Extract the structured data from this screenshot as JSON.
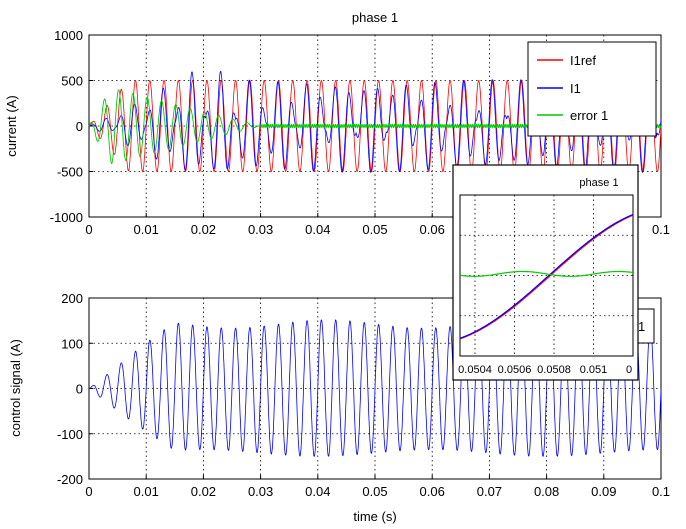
{
  "chart_data": [
    {
      "type": "line",
      "title": "phase 1",
      "xlabel": "",
      "ylabel": "current (A)",
      "xlim": [
        0,
        0.1
      ],
      "ylim": [
        -1000,
        1000
      ],
      "xticks": [
        "0",
        "0.01",
        "0.02",
        "0.03",
        "0.04",
        "0.05",
        "0.06",
        "0.07",
        "0.08",
        "0.09",
        "0.1"
      ],
      "yticks": [
        "-1000",
        "-500",
        "0",
        "500",
        "1000"
      ],
      "grid": true,
      "legend_position": "top-right",
      "series": [
        {
          "name": "I1ref",
          "color": "#ff0000",
          "amplitude": 500,
          "frequency_hz": 400,
          "ramp_end_s": 0.007
        },
        {
          "name": "I1",
          "color": "#0000ff",
          "amplitude": 500,
          "frequency_hz": 400,
          "oscillation_overshoot": 600
        },
        {
          "name": "error 1",
          "color": "#00cc00",
          "peak": 480,
          "decay_to_zero_s": 0.03
        }
      ]
    },
    {
      "type": "line",
      "title": "phase 1",
      "xlabel": "",
      "ylabel": "",
      "xlim": [
        0.0503,
        0.0512
      ],
      "xticks": [
        "0.0504",
        "0.0506",
        "0.0508",
        "0.051",
        "0"
      ],
      "grid": true,
      "series": [
        {
          "name": "I1ref",
          "color": "#ff0000"
        },
        {
          "name": "I1",
          "color": "#0000ff"
        },
        {
          "name": "error 1",
          "color": "#00cc00"
        }
      ]
    },
    {
      "type": "line",
      "title": "",
      "xlabel": "time (s)",
      "ylabel": "control signal (A)",
      "xlim": [
        0,
        0.1
      ],
      "ylim": [
        -200,
        200
      ],
      "xticks": [
        "0",
        "0.01",
        "0.02",
        "0.03",
        "0.04",
        "0.05",
        "0.06",
        "0.07",
        "0.08",
        "0.09",
        "0.1"
      ],
      "yticks": [
        "-200",
        "-100",
        "0",
        "100",
        "200"
      ],
      "grid": true,
      "legend_stub": "1",
      "series": [
        {
          "name": "control signal",
          "color": "#0000ff",
          "envelope_max": 155,
          "envelope_min": -150
        }
      ]
    }
  ]
}
